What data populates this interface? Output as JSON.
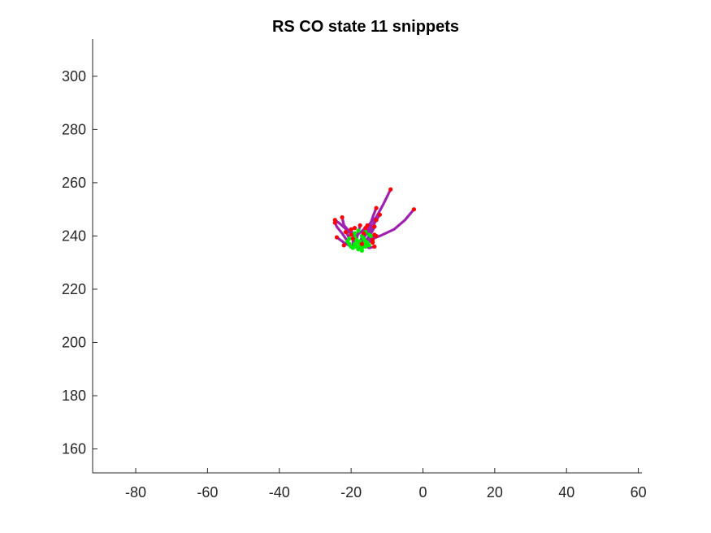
{
  "chart_data": {
    "type": "line",
    "title": "RS  CO state 11 snippets",
    "xlabel": "",
    "ylabel": "",
    "xlim": [
      -92,
      61
    ],
    "ylim": [
      151,
      314
    ],
    "xticks": [
      -80,
      -60,
      -40,
      -20,
      0,
      20,
      40,
      60
    ],
    "yticks": [
      160,
      180,
      200,
      220,
      240,
      260,
      280,
      300
    ],
    "grid": false,
    "legend": "none",
    "colors": {
      "trajectory": "#a020b0",
      "start": "#00ee00",
      "end": "#ff0000",
      "axis": "#262626"
    },
    "series": [
      {
        "values": [
          [
            -19.5,
            239.0
          ],
          [
            -16,
            243
          ],
          [
            -13,
            247
          ],
          [
            -11,
            252
          ],
          [
            -9,
            257.5
          ]
        ]
      },
      {
        "values": [
          [
            -16.0,
            238.0
          ],
          [
            -12,
            240
          ],
          [
            -8,
            242.5
          ],
          [
            -5,
            246
          ],
          [
            -2.5,
            250
          ]
        ]
      },
      {
        "values": [
          [
            -19.0,
            239.5
          ],
          [
            -21,
            242
          ],
          [
            -23,
            244.5
          ],
          [
            -24.5,
            246
          ]
        ]
      },
      {
        "values": [
          [
            -18.0,
            237.5
          ],
          [
            -20,
            241
          ],
          [
            -22,
            244
          ],
          [
            -22.5,
            247
          ]
        ]
      },
      {
        "values": [
          [
            -21.0,
            238.0
          ],
          [
            -22.5,
            241
          ],
          [
            -24,
            243.5
          ],
          [
            -24.5,
            245
          ]
        ]
      },
      {
        "values": [
          [
            -20.0,
            236.0
          ],
          [
            -22,
            237.5
          ],
          [
            -24,
            239.5
          ]
        ]
      },
      {
        "values": [
          [
            -16.5,
            239.0
          ],
          [
            -15,
            243
          ],
          [
            -14,
            247
          ],
          [
            -13,
            250.5
          ]
        ]
      },
      {
        "values": [
          [
            -17.5,
            236.5
          ],
          [
            -16,
            240.5
          ],
          [
            -14,
            244
          ],
          [
            -12,
            248
          ]
        ]
      },
      {
        "values": [
          [
            -15.0,
            240.5
          ],
          [
            -14,
            243.5
          ],
          [
            -13,
            246
          ]
        ]
      },
      {
        "values": [
          [
            -19.0,
            237.0
          ],
          [
            -19.5,
            240
          ],
          [
            -20,
            242.5
          ]
        ]
      },
      {
        "values": [
          [
            -17.0,
            235.5
          ],
          [
            -15.5,
            239
          ],
          [
            -14,
            242
          ],
          [
            -13.5,
            243.5
          ]
        ]
      },
      {
        "values": [
          [
            -18.5,
            238.5
          ],
          [
            -18,
            241.5
          ],
          [
            -17.5,
            244
          ]
        ]
      },
      {
        "values": [
          [
            -16.0,
            236.0
          ],
          [
            -15,
            238.5
          ],
          [
            -13.5,
            240.5
          ]
        ]
      },
      {
        "values": [
          [
            -20.5,
            239.0
          ],
          [
            -21,
            240.5
          ],
          [
            -21.5,
            241.5
          ]
        ]
      },
      {
        "values": [
          [
            -17.0,
            240.0
          ],
          [
            -16.5,
            242
          ],
          [
            -16,
            243
          ]
        ]
      },
      {
        "values": [
          [
            -18.0,
            235.0
          ],
          [
            -16,
            237
          ],
          [
            -14,
            238.5
          ]
        ]
      },
      {
        "values": [
          [
            -15.5,
            237.5
          ],
          [
            -14.5,
            239
          ],
          [
            -13,
            240
          ]
        ]
      },
      {
        "values": [
          [
            -19.5,
            235.5
          ],
          [
            -19.5,
            237.5
          ],
          [
            -19.5,
            239
          ]
        ]
      },
      {
        "values": [
          [
            -17.5,
            238.0
          ],
          [
            -17,
            239.5
          ],
          [
            -16.5,
            241
          ]
        ]
      },
      {
        "values": [
          [
            -16.5,
            237.0
          ],
          [
            -15,
            235.5
          ],
          [
            -13.5,
            236
          ]
        ]
      }
    ],
    "extra_points": {
      "start": [
        [
          -18.0,
          242.0
        ],
        [
          -17.0,
          234.5
        ],
        [
          -19.0,
          241.0
        ],
        [
          -15.0,
          236.5
        ],
        [
          -14.5,
          240.0
        ],
        [
          -20.5,
          237.0
        ],
        [
          -18.5,
          236.0
        ],
        [
          -16.0,
          241.5
        ]
      ],
      "end": [
        [
          -19.0,
          243.0
        ],
        [
          -15.5,
          244.0
        ],
        [
          -14.0,
          237.5
        ],
        [
          -22.0,
          236.5
        ],
        [
          -17.0,
          237.0
        ],
        [
          -20.0,
          240.5
        ]
      ]
    }
  }
}
